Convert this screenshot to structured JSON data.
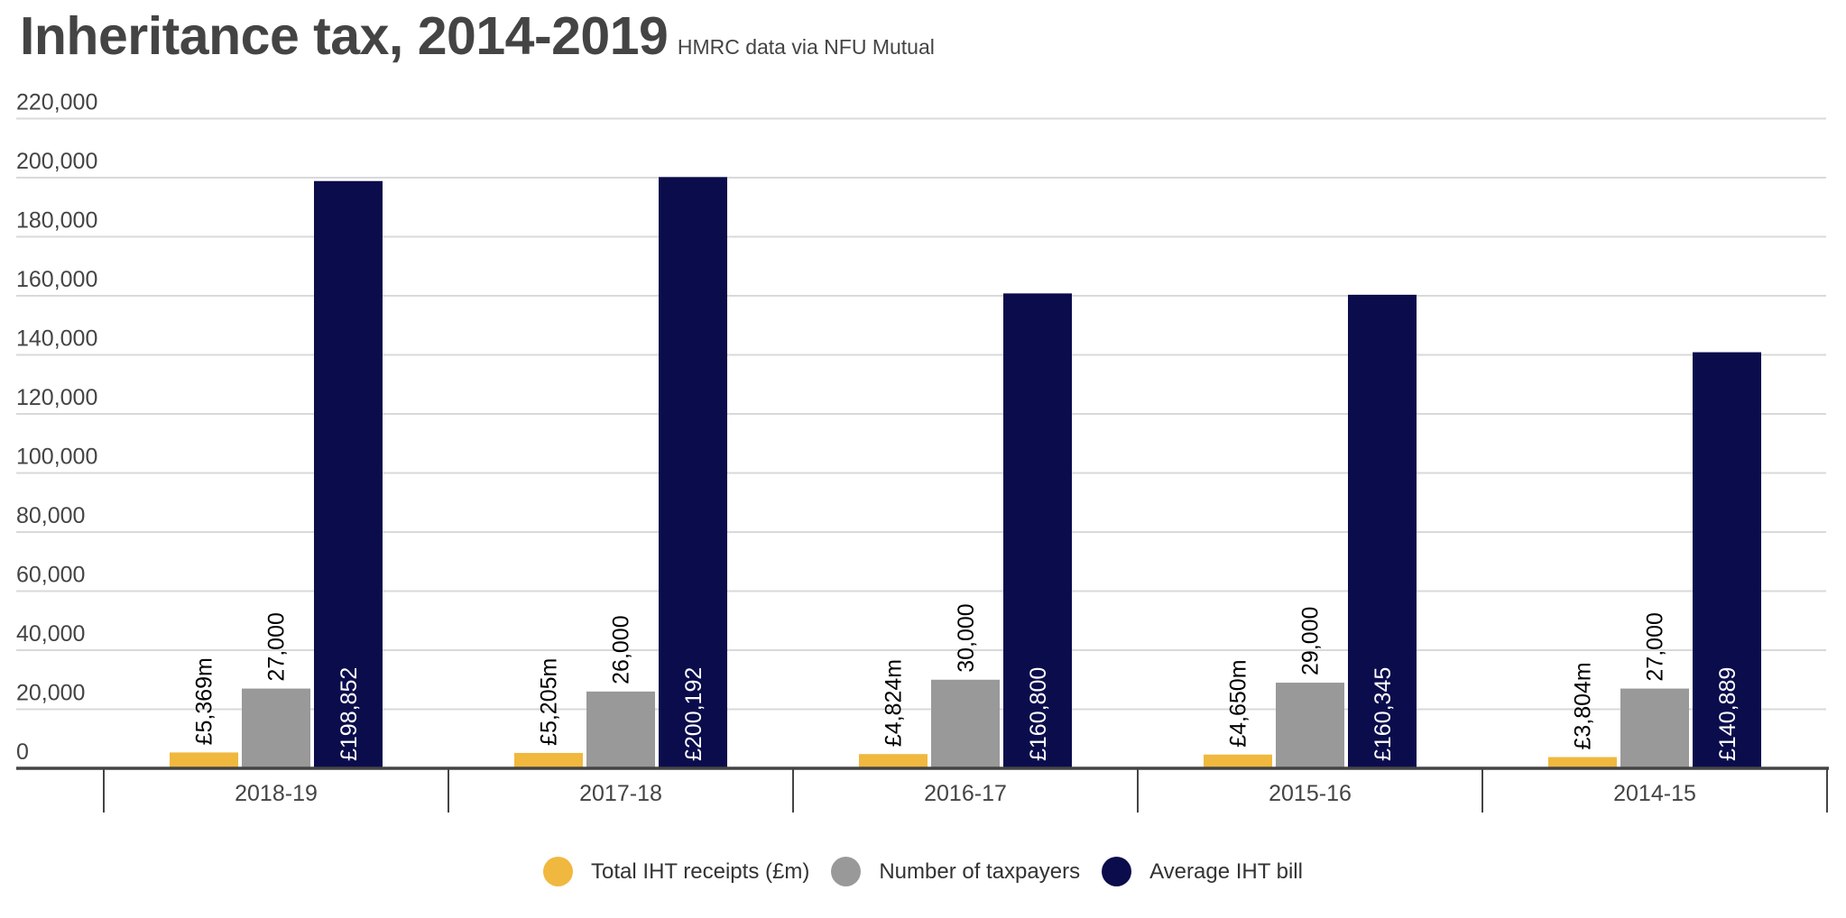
{
  "header": {
    "title": "Inheritance tax, 2014-2019",
    "subtitle": "HMRC data via NFU Mutual"
  },
  "chart_data": {
    "type": "bar",
    "title": "Inheritance tax, 2014-2019",
    "subtitle": "HMRC data via NFU Mutual",
    "xlabel": "",
    "ylabel": "",
    "ylim": [
      0,
      220000
    ],
    "yticks": [
      0,
      20000,
      40000,
      60000,
      80000,
      100000,
      120000,
      140000,
      160000,
      180000,
      200000,
      220000
    ],
    "ytick_labels": [
      "0",
      "20,000",
      "40,000",
      "60,000",
      "80,000",
      "100,000",
      "120,000",
      "140,000",
      "160,000",
      "180,000",
      "200,000",
      "220,000"
    ],
    "grid": true,
    "legend_position": "bottom-center",
    "categories": [
      "2018-19",
      "2017-18",
      "2016-17",
      "2015-16",
      "2014-15"
    ],
    "series": [
      {
        "name": "Total IHT receipts (£m)",
        "color": "#f0b83e",
        "values": [
          5369,
          5205,
          4824,
          4650,
          3804
        ],
        "labels": [
          "£5,369m",
          "£5,205m",
          "£4,824m",
          "£4,650m",
          "£3,804m"
        ],
        "label_color": "#000000"
      },
      {
        "name": "Number of taxpayers",
        "color": "#999999",
        "values": [
          27000,
          26000,
          30000,
          29000,
          27000
        ],
        "labels": [
          "27,000",
          "26,000",
          "30,000",
          "29,000",
          "27,000"
        ],
        "label_color": "#000000"
      },
      {
        "name": "Average IHT bill",
        "color": "#0b0c4c",
        "values": [
          198852,
          200192,
          160800,
          160345,
          140889
        ],
        "labels": [
          "£198,852",
          "£200,192",
          "£160,800",
          "£160,345",
          "£140,889"
        ],
        "label_color": "#ffffff"
      }
    ]
  },
  "colors": {
    "text": "#444444",
    "grid": "#d9d9d9",
    "axis": "#444444"
  }
}
